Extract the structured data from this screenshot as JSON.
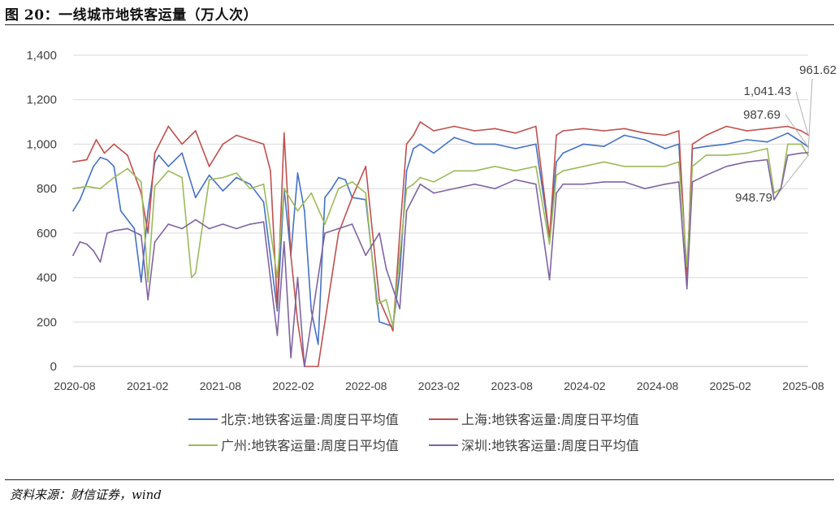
{
  "figure": {
    "title": "图 20：一线城市地铁客运量（万人次）",
    "source": "资料来源：财信证券，wind"
  },
  "chart_data": {
    "type": "line",
    "title": "",
    "xlabel": "",
    "ylabel": "",
    "ylim": [
      0,
      1400
    ],
    "y_ticks": [
      0,
      200,
      400,
      600,
      800,
      1000,
      1200,
      1400
    ],
    "y_tick_labels": [
      "0",
      "200",
      "400",
      "600",
      "800",
      "1,000",
      "1,200",
      "1,400"
    ],
    "x_tick_labels": [
      "2020-08",
      "2021-02",
      "2021-08",
      "2022-02",
      "2022-08",
      "2023-02",
      "2023-08",
      "2024-02",
      "2024-08",
      "2025-02",
      "2025-08"
    ],
    "x_domain": [
      2020.55,
      2025.95
    ],
    "grid": true,
    "legend_position": "bottom",
    "series": [
      {
        "name": "北京:地铁客运量:周度日平均值",
        "color": "#4472C4",
        "x": [
          2020.55,
          2020.6,
          2020.7,
          2020.75,
          2020.8,
          2020.85,
          2020.9,
          2021.0,
          2021.05,
          2021.1,
          2021.15,
          2021.18,
          2021.25,
          2021.35,
          2021.45,
          2021.55,
          2021.65,
          2021.75,
          2021.85,
          2021.95,
          2022.05,
          2022.1,
          2022.15,
          2022.2,
          2022.25,
          2022.3,
          2022.35,
          2022.4,
          2022.45,
          2022.5,
          2022.55,
          2022.6,
          2022.7,
          2022.8,
          2022.9,
          2022.95,
          2023.0,
          2023.05,
          2023.1,
          2023.2,
          2023.35,
          2023.5,
          2023.65,
          2023.8,
          2023.95,
          2024.05,
          2024.1,
          2024.15,
          2024.3,
          2024.45,
          2024.6,
          2024.75,
          2024.9,
          2025.0,
          2025.06,
          2025.1,
          2025.2,
          2025.35,
          2025.5,
          2025.65,
          2025.8,
          2025.9,
          2025.95
        ],
        "values": [
          700,
          750,
          900,
          940,
          930,
          900,
          700,
          620,
          380,
          700,
          920,
          950,
          900,
          960,
          760,
          860,
          790,
          850,
          820,
          740,
          250,
          800,
          500,
          870,
          700,
          250,
          100,
          760,
          800,
          850,
          840,
          760,
          750,
          200,
          180,
          420,
          880,
          980,
          1000,
          960,
          1030,
          1000,
          1000,
          980,
          1000,
          580,
          920,
          960,
          1000,
          990,
          1040,
          1020,
          980,
          1000,
          400,
          980,
          990,
          1000,
          1020,
          1010,
          1050,
          1010,
          987.69
        ]
      },
      {
        "name": "上海:地铁客运量:周度日平均值",
        "color": "#C0504D",
        "x": [
          2020.55,
          2020.65,
          2020.72,
          2020.78,
          2020.85,
          2020.95,
          2021.05,
          2021.1,
          2021.15,
          2021.25,
          2021.35,
          2021.45,
          2021.55,
          2021.65,
          2021.75,
          2021.85,
          2021.95,
          2022.0,
          2022.05,
          2022.1,
          2022.15,
          2022.2,
          2022.25,
          2022.35,
          2022.45,
          2022.5,
          2022.6,
          2022.7,
          2022.8,
          2022.9,
          2022.95,
          2023.0,
          2023.05,
          2023.1,
          2023.2,
          2023.35,
          2023.5,
          2023.65,
          2023.8,
          2023.95,
          2024.05,
          2024.1,
          2024.15,
          2024.3,
          2024.45,
          2024.6,
          2024.75,
          2024.9,
          2025.0,
          2025.06,
          2025.1,
          2025.2,
          2025.35,
          2025.5,
          2025.65,
          2025.8,
          2025.9,
          2025.95
        ],
        "values": [
          920,
          930,
          1020,
          960,
          1000,
          950,
          780,
          600,
          960,
          1080,
          1000,
          1060,
          900,
          1000,
          1040,
          1020,
          1000,
          880,
          270,
          1050,
          500,
          200,
          0,
          0,
          400,
          600,
          760,
          900,
          300,
          160,
          600,
          1000,
          1040,
          1100,
          1060,
          1080,
          1060,
          1070,
          1050,
          1080,
          580,
          1040,
          1060,
          1070,
          1060,
          1070,
          1050,
          1040,
          1060,
          400,
          1000,
          1040,
          1080,
          1060,
          1070,
          1080,
          1060,
          1041.43
        ]
      },
      {
        "name": "广州:地铁客运量:周度日平均值",
        "color": "#9BBB59",
        "x": [
          2020.55,
          2020.65,
          2020.75,
          2020.85,
          2020.95,
          2021.05,
          2021.1,
          2021.15,
          2021.25,
          2021.35,
          2021.42,
          2021.45,
          2021.55,
          2021.65,
          2021.75,
          2021.85,
          2021.95,
          2022.05,
          2022.1,
          2022.2,
          2022.3,
          2022.4,
          2022.5,
          2022.6,
          2022.7,
          2022.78,
          2022.85,
          2022.9,
          2022.95,
          2023.0,
          2023.05,
          2023.1,
          2023.2,
          2023.35,
          2023.5,
          2023.65,
          2023.8,
          2023.95,
          2024.05,
          2024.1,
          2024.15,
          2024.3,
          2024.45,
          2024.6,
          2024.75,
          2024.9,
          2025.0,
          2025.06,
          2025.1,
          2025.2,
          2025.35,
          2025.5,
          2025.65,
          2025.7,
          2025.75,
          2025.8,
          2025.9,
          2025.95
        ],
        "values": [
          800,
          810,
          800,
          850,
          890,
          830,
          380,
          810,
          880,
          850,
          400,
          420,
          840,
          850,
          870,
          800,
          820,
          400,
          800,
          700,
          780,
          640,
          800,
          830,
          780,
          280,
          300,
          180,
          500,
          800,
          820,
          850,
          830,
          880,
          880,
          900,
          880,
          900,
          550,
          860,
          880,
          900,
          920,
          900,
          900,
          900,
          920,
          450,
          900,
          950,
          950,
          960,
          980,
          780,
          800,
          1000,
          1000,
          948.79
        ]
      },
      {
        "name": "深圳:地铁客运量:周度日平均值",
        "color": "#8064A2",
        "x": [
          2020.55,
          2020.6,
          2020.65,
          2020.7,
          2020.75,
          2020.8,
          2020.85,
          2020.95,
          2021.05,
          2021.1,
          2021.15,
          2021.25,
          2021.35,
          2021.45,
          2021.55,
          2021.65,
          2021.75,
          2021.85,
          2021.95,
          2022.05,
          2022.1,
          2022.15,
          2022.2,
          2022.25,
          2022.3,
          2022.4,
          2022.5,
          2022.6,
          2022.7,
          2022.8,
          2022.85,
          2022.9,
          2022.95,
          2023.0,
          2023.05,
          2023.1,
          2023.2,
          2023.35,
          2023.5,
          2023.65,
          2023.8,
          2023.95,
          2024.05,
          2024.1,
          2024.15,
          2024.3,
          2024.45,
          2024.6,
          2024.75,
          2024.9,
          2025.0,
          2025.06,
          2025.1,
          2025.2,
          2025.35,
          2025.5,
          2025.65,
          2025.7,
          2025.75,
          2025.8,
          2025.9,
          2025.95
        ],
        "values": [
          500,
          560,
          550,
          520,
          470,
          600,
          610,
          620,
          590,
          300,
          560,
          640,
          620,
          660,
          620,
          640,
          620,
          640,
          650,
          140,
          560,
          40,
          400,
          0,
          200,
          600,
          620,
          640,
          500,
          600,
          440,
          350,
          260,
          700,
          760,
          820,
          780,
          800,
          820,
          800,
          840,
          820,
          390,
          780,
          820,
          820,
          830,
          830,
          800,
          820,
          830,
          350,
          830,
          860,
          900,
          920,
          930,
          750,
          800,
          950,
          960,
          961.62
        ]
      }
    ],
    "annotations": [
      "961.62",
      "1,041.43",
      "987.69",
      "948.79"
    ],
    "annotation_colors": [
      "#8064A2",
      "#C0504D",
      "#4472C4",
      "#9BBB59"
    ]
  }
}
